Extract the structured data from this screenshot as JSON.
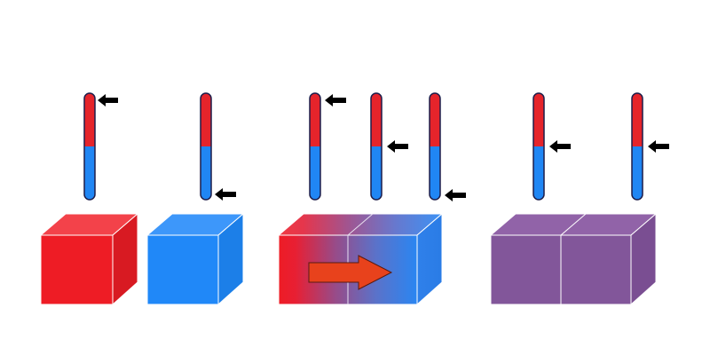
{
  "colors": {
    "hot": "#ee1c25",
    "cold": "#2088f8",
    "equilibrium": "#82569a",
    "thermometer_hot": "#e5242b",
    "thermometer_cold": "#2086f4",
    "arrow_pointer": "#000000",
    "flow_arrow": "#e8421c",
    "background": "#ffffff"
  },
  "scenes": [
    {
      "name": "separate",
      "thermometers": [
        {
          "name": "hot-block",
          "level": 1.0
        },
        {
          "name": "cold-block",
          "level": 0.0
        }
      ],
      "blocks": [
        {
          "name": "hot-block",
          "fill": "hot"
        },
        {
          "name": "cold-block",
          "fill": "cold"
        }
      ]
    },
    {
      "name": "in-contact",
      "thermometers": [
        {
          "name": "hot-block",
          "level": 1.0
        },
        {
          "name": "interface",
          "level": 0.5
        },
        {
          "name": "cold-block",
          "level": 0.0
        }
      ],
      "blocks": [
        {
          "name": "combined-block",
          "fill": "gradient"
        }
      ],
      "flow_arrow": {
        "direction": "hot-to-cold",
        "icon": "right-arrow-icon"
      }
    },
    {
      "name": "equilibrium",
      "thermometers": [
        {
          "name": "left-block",
          "level": 0.5
        },
        {
          "name": "right-block",
          "level": 0.5
        }
      ],
      "blocks": [
        {
          "name": "equilibrium-block",
          "fill": "equilibrium"
        }
      ]
    }
  ]
}
